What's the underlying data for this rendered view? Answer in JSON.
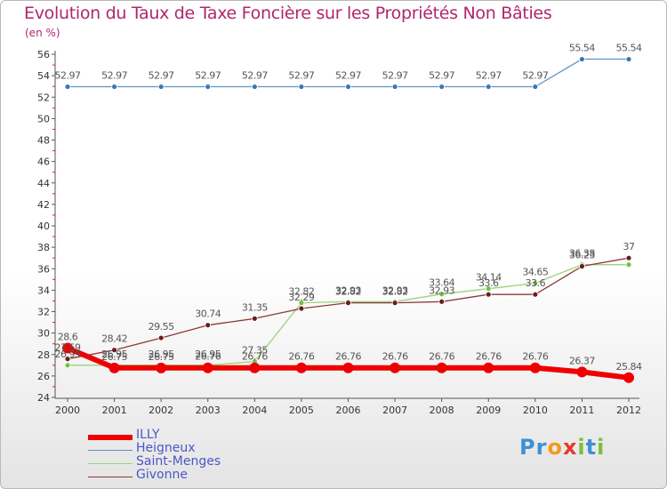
{
  "title": "Evolution du Taux de Taxe Foncière sur les Propriétés Non Bâties",
  "unit": "(en %)",
  "logo": {
    "letters": [
      {
        "ch": "P",
        "color": "#3f8fd6"
      },
      {
        "ch": "r",
        "color": "#3f8fd6"
      },
      {
        "ch": "o",
        "color": "#f39a1e"
      },
      {
        "ch": "x",
        "color": "#e33a2c"
      },
      {
        "ch": "i",
        "color": "#7cbf3a"
      },
      {
        "ch": "t",
        "color": "#3f8fd6"
      },
      {
        "ch": "i",
        "color": "#7cbf3a"
      }
    ]
  },
  "chart_data": {
    "type": "line",
    "x": [
      "2000",
      "2001",
      "2002",
      "2003",
      "2004",
      "2005",
      "2006",
      "2007",
      "2008",
      "2009",
      "2010",
      "2011",
      "2012"
    ],
    "ylim": [
      24,
      56
    ],
    "yticks": [
      24,
      26,
      28,
      30,
      32,
      34,
      36,
      38,
      40,
      42,
      44,
      46,
      48,
      50,
      52,
      54,
      56
    ],
    "grid": false,
    "legend_position": "bottom-left",
    "series": [
      {
        "name": "Heigneux",
        "color": "#5b93c8",
        "dot": "#3b77b4",
        "width": 1.3,
        "r": 3,
        "values": [
          52.97,
          52.97,
          52.97,
          52.97,
          52.97,
          52.97,
          52.97,
          52.97,
          52.97,
          52.97,
          52.97,
          55.54,
          55.54
        ],
        "labels": [
          "52.97",
          "52.97",
          "52.97",
          "52.97",
          "52.97",
          "52.97",
          "52.97",
          "52.97",
          "52.97",
          "52.97",
          "52.97",
          "55.54",
          "55.54"
        ]
      },
      {
        "name": "Saint-Menges",
        "color": "#9ad37a",
        "dot": "#6cc43c",
        "width": 1.3,
        "r": 3,
        "values": [
          27.0,
          27.0,
          27.0,
          27.0,
          27.35,
          32.82,
          32.93,
          32.93,
          33.64,
          34.14,
          34.65,
          36.38,
          36.38
        ],
        "labels": [
          "26.95",
          "26.95",
          "26.95",
          "26.95",
          "27.35",
          "32.82",
          "32.93",
          "32.93",
          "33.64",
          "34.14",
          "34.65",
          "36.38",
          ""
        ]
      },
      {
        "name": "Givonne",
        "color": "#8a3a3a",
        "dot": "#6a1c1c",
        "width": 1.3,
        "r": 3,
        "values": [
          27.59,
          28.42,
          29.55,
          30.74,
          31.35,
          32.29,
          32.82,
          32.82,
          32.93,
          33.6,
          33.6,
          36.23,
          37.0
        ],
        "labels": [
          "27.59",
          "28.42",
          "29.55",
          "30.74",
          "31.35",
          "32.29",
          "32.82",
          "32.82",
          "32.93",
          "33.6",
          "33.6",
          "36.23",
          "37"
        ]
      },
      {
        "name": "ILLY",
        "color": "#ee0000",
        "dot": "#ee0000",
        "width": 6,
        "r": 6,
        "values": [
          28.6,
          26.75,
          26.75,
          26.76,
          26.76,
          26.76,
          26.76,
          26.76,
          26.76,
          26.76,
          26.76,
          26.37,
          25.84
        ],
        "labels": [
          "28.6",
          "26.75",
          "26.75",
          "26.76",
          "26.76",
          "26.76",
          "26.76",
          "26.76",
          "26.76",
          "26.76",
          "26.76",
          "26.37",
          "25.84"
        ]
      }
    ],
    "legend": [
      {
        "name": "ILLY",
        "color": "#ee0000",
        "width": 6
      },
      {
        "name": "Heigneux",
        "color": "#5b93c8",
        "width": 1.3
      },
      {
        "name": "Saint-Menges",
        "color": "#9ad37a",
        "width": 1.3
      },
      {
        "name": "Givonne",
        "color": "#8a3a3a",
        "width": 1.3
      }
    ]
  }
}
